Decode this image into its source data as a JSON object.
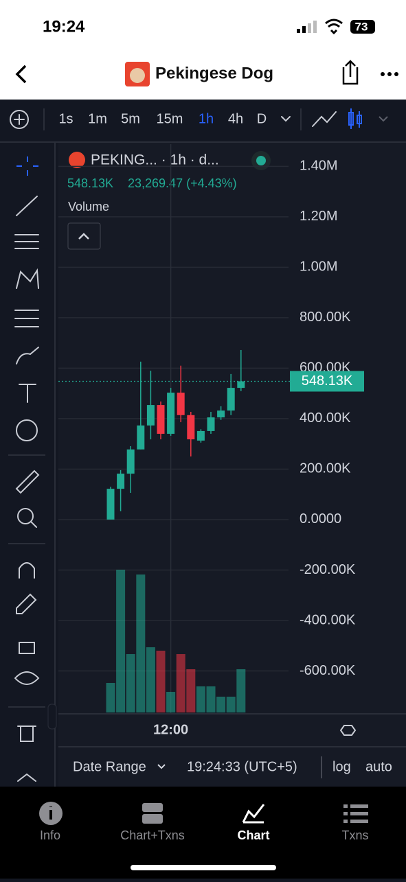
{
  "status_bar": {
    "time": "19:24",
    "battery": "73"
  },
  "header": {
    "title": "Pekingese Dog"
  },
  "toolbar": {
    "intervals": [
      "1s",
      "1m",
      "5m",
      "15m",
      "1h",
      "4h",
      "D"
    ],
    "active": 4
  },
  "chart_data": {
    "type": "candlestick",
    "symbol": "PEKING... · 1h · d...",
    "price": "548.13K",
    "change": "23,269.47 (+4.43%)",
    "indicator": "Volume",
    "categories": [
      null,
      null,
      null,
      null,
      null,
      null,
      "12:00",
      null,
      null,
      null,
      null,
      null,
      null,
      null
    ],
    "open": [
      0,
      122000,
      182000,
      278000,
      373000,
      454000,
      340000,
      503000,
      414000,
      313000,
      351000,
      405000,
      432000,
      522000
    ],
    "high": [
      130000,
      196000,
      291000,
      626000,
      590000,
      468000,
      522000,
      610000,
      427000,
      358000,
      427000,
      449000,
      577000,
      672000
    ],
    "low": [
      0,
      33000,
      106000,
      278000,
      318000,
      318000,
      332000,
      386000,
      250000,
      305000,
      340000,
      395000,
      414000,
      509000
    ],
    "close": [
      122000,
      182000,
      278000,
      373000,
      454000,
      340000,
      503000,
      414000,
      318000,
      351000,
      405000,
      432000,
      522000,
      548000
    ],
    "volume": [
      43,
      208,
      85,
      201,
      95,
      90,
      30,
      85,
      63,
      38,
      38,
      23,
      23,
      63
    ],
    "volume_lim": [
      0,
      215
    ],
    "up_color": "#22ab94",
    "down_color": "#f23645",
    "ylim": [
      -770000,
      1488000
    ],
    "yticks": [
      {
        "value": 1400000,
        "label": "1.40M"
      },
      {
        "value": 1200000,
        "label": "1.20M"
      },
      {
        "value": 1000000,
        "label": "1.00M"
      },
      {
        "value": 800000,
        "label": "800.00K"
      },
      {
        "value": 600000,
        "label": "600.00K"
      },
      {
        "value": 400000,
        "label": "400.00K"
      },
      {
        "value": 200000,
        "label": "200.00K"
      },
      {
        "value": 0,
        "label": "0.0000"
      },
      {
        "value": -200000,
        "label": "-200.00K"
      },
      {
        "value": -400000,
        "label": "-400.00K"
      },
      {
        "value": -600000,
        "label": "-600.00K"
      }
    ],
    "last_price": {
      "value": 548130,
      "label": "548.13K"
    },
    "grid": true
  },
  "footer": {
    "date_range": "Date Range",
    "clock": "19:24:33 (UTC+5)",
    "log": "log",
    "auto": "auto"
  },
  "nav": [
    "Info",
    "Chart+Txns",
    "Chart",
    "Txns"
  ]
}
